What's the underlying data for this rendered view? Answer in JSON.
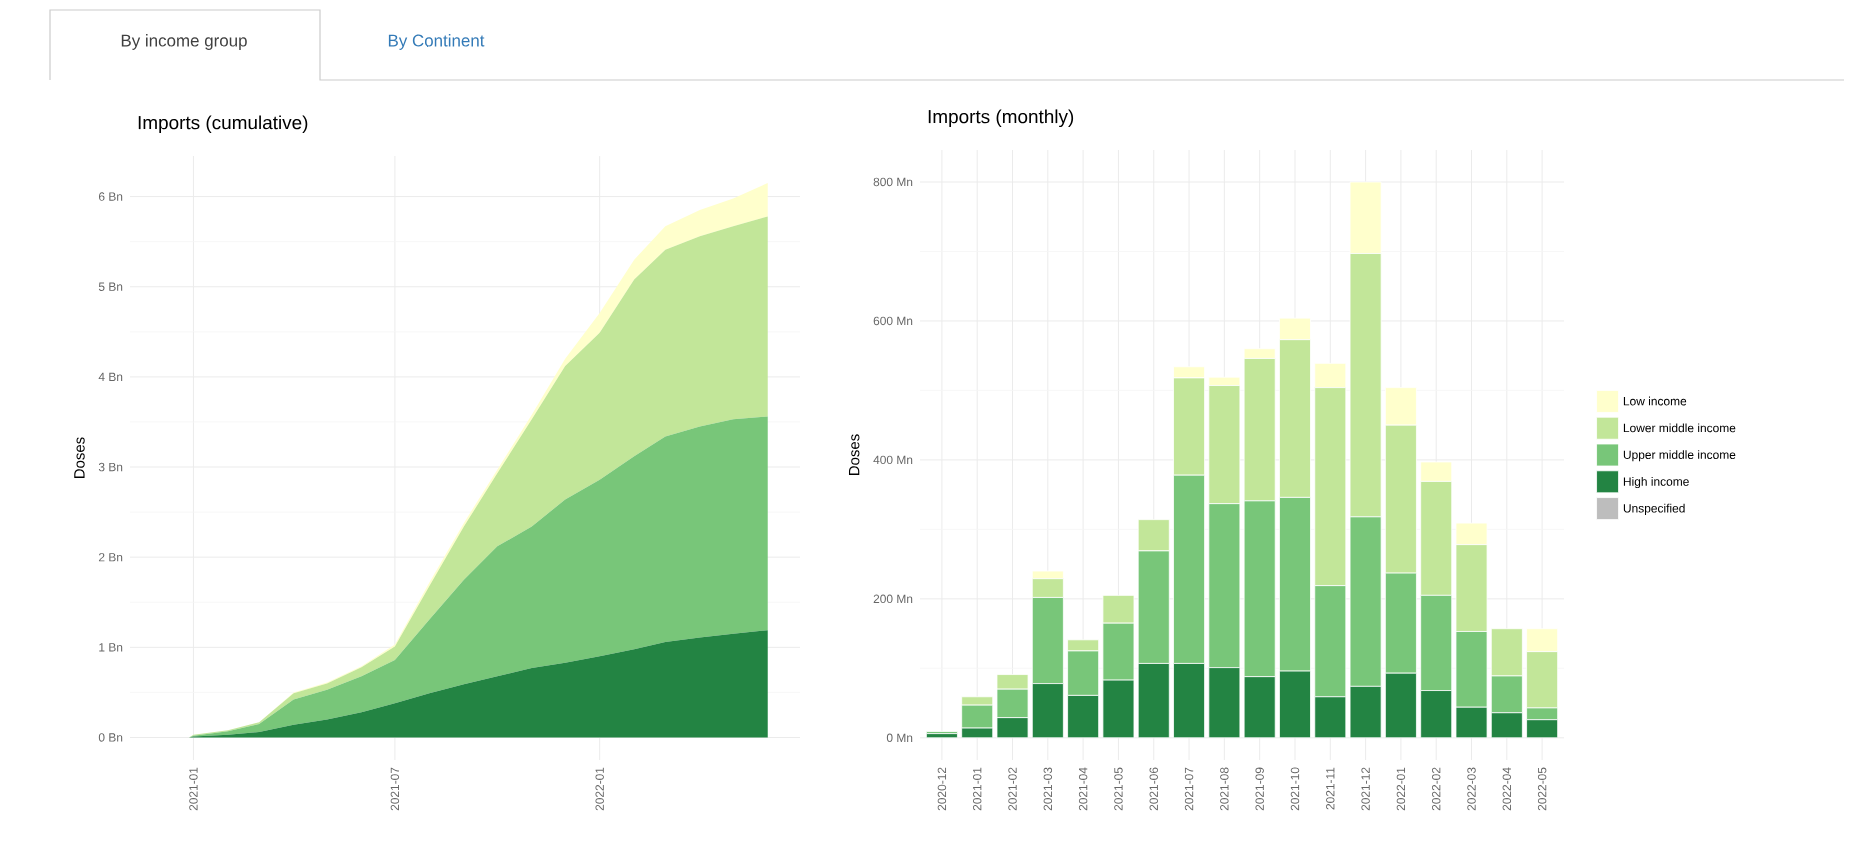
{
  "chart_data": [
    {
      "type": "area",
      "title": "Imports (cumulative)",
      "ylabel": "Doses",
      "stacked": true,
      "grid": true,
      "annotations": [
        "By income group",
        "By Continent"
      ],
      "x": [
        "2020-12-28",
        "2021-01-01",
        "2021-02-01",
        "2021-03-01",
        "2021-04-01",
        "2021-05-01",
        "2021-06-01",
        "2021-07-01",
        "2021-08-01",
        "2021-09-01",
        "2021-10-01",
        "2021-11-01",
        "2021-12-01",
        "2022-01-01",
        "2022-02-01",
        "2022-03-01",
        "2022-04-01",
        "2022-05-01",
        "2022-06-01"
      ],
      "series": [
        {
          "color": "#238443",
          "values": [
            0,
            0.01,
            0.03,
            0.06,
            0.14,
            0.2,
            0.28,
            0.38,
            0.49,
            0.59,
            0.68,
            0.77,
            0.83,
            0.9,
            0.98,
            1.06,
            1.11,
            1.15,
            1.19
          ]
        },
        {
          "color": "#78c679",
          "values": [
            0,
            0.01,
            0.04,
            0.09,
            0.28,
            0.33,
            0.4,
            0.48,
            0.82,
            1.16,
            1.44,
            1.57,
            1.81,
            1.96,
            2.14,
            2.28,
            2.34,
            2.38,
            2.37
          ]
        },
        {
          "color": "#c2e699",
          "values": [
            0,
            0.01,
            0.01,
            0.02,
            0.07,
            0.07,
            0.1,
            0.15,
            0.37,
            0.59,
            0.81,
            1.19,
            1.48,
            1.63,
            1.96,
            2.07,
            2.11,
            2.14,
            2.22
          ]
        },
        {
          "color": "#ffffcc",
          "values": [
            0,
            0,
            0,
            0,
            0.01,
            0.01,
            0.01,
            0.02,
            0.04,
            0.04,
            0.04,
            0.05,
            0.08,
            0.22,
            0.22,
            0.26,
            0.29,
            0.31,
            0.37
          ]
        }
      ],
      "xlim": [
        "2020-11-05",
        "2022-06-30"
      ],
      "ylim": [
        -0.25,
        6.45
      ],
      "xticks": [
        {
          "value": "2021-01-01",
          "label": "2021-01"
        },
        {
          "value": "2021-07-01",
          "label": "2021-07"
        },
        {
          "value": "2022-01-01",
          "label": "2022-01"
        }
      ],
      "yticks": [
        {
          "value": 0,
          "label": "0 Bn"
        },
        {
          "value": 1,
          "label": "1 Bn"
        },
        {
          "value": 2,
          "label": "2 Bn"
        },
        {
          "value": 3,
          "label": "3 Bn"
        },
        {
          "value": 4,
          "label": "4 Bn"
        },
        {
          "value": 5,
          "label": "5 Bn"
        },
        {
          "value": 6,
          "label": "6 Bn"
        }
      ]
    },
    {
      "type": "bar",
      "title": "Imports (monthly)",
      "ylabel": "Doses",
      "stacked": true,
      "grid": true,
      "legend": "right",
      "categories": [
        "2020-12",
        "2021-01",
        "2021-02",
        "2021-03",
        "2021-04",
        "2021-05",
        "2021-06",
        "2021-07",
        "2021-08",
        "2021-09",
        "2021-10",
        "2021-11",
        "2021-12",
        "2022-01",
        "2022-02",
        "2022-03",
        "2022-04",
        "2022-05"
      ],
      "series": [
        {
          "name": "Unspecified",
          "color": "#bdbdbd",
          "values": [
            0,
            0,
            0,
            0,
            0,
            0,
            0,
            0,
            0,
            0,
            0,
            0,
            0,
            0,
            0,
            0,
            0,
            0
          ]
        },
        {
          "name": "High income",
          "color": "#238443",
          "values": [
            6,
            14,
            29,
            78,
            61,
            83,
            107,
            107,
            101,
            88,
            96,
            59,
            74,
            93,
            68,
            44,
            36,
            26
          ]
        },
        {
          "name": "Upper middle income",
          "color": "#78c679",
          "values": [
            3,
            33,
            41,
            124,
            64,
            82,
            162,
            271,
            236,
            253,
            250,
            160,
            244,
            144,
            137,
            109,
            53,
            17
          ]
        },
        {
          "name": "Lower middle income",
          "color": "#c2e699",
          "values": [
            0,
            12,
            21,
            27,
            16,
            40,
            45,
            140,
            170,
            205,
            227,
            285,
            379,
            213,
            164,
            125,
            68,
            81
          ]
        },
        {
          "name": "Low income",
          "color": "#ffffcc",
          "values": [
            0,
            0,
            0,
            11,
            0,
            0,
            0,
            16,
            12,
            14,
            31,
            35,
            103,
            54,
            28,
            31,
            0,
            33
          ]
        }
      ],
      "ylim": [
        -32,
        846
      ],
      "yticks": [
        {
          "value": 0,
          "label": "0 Mn"
        },
        {
          "value": 200,
          "label": "200 Mn"
        },
        {
          "value": 400,
          "label": "400 Mn"
        },
        {
          "value": 600,
          "label": "600 Mn"
        },
        {
          "value": 800,
          "label": "800 Mn"
        }
      ]
    }
  ]
}
